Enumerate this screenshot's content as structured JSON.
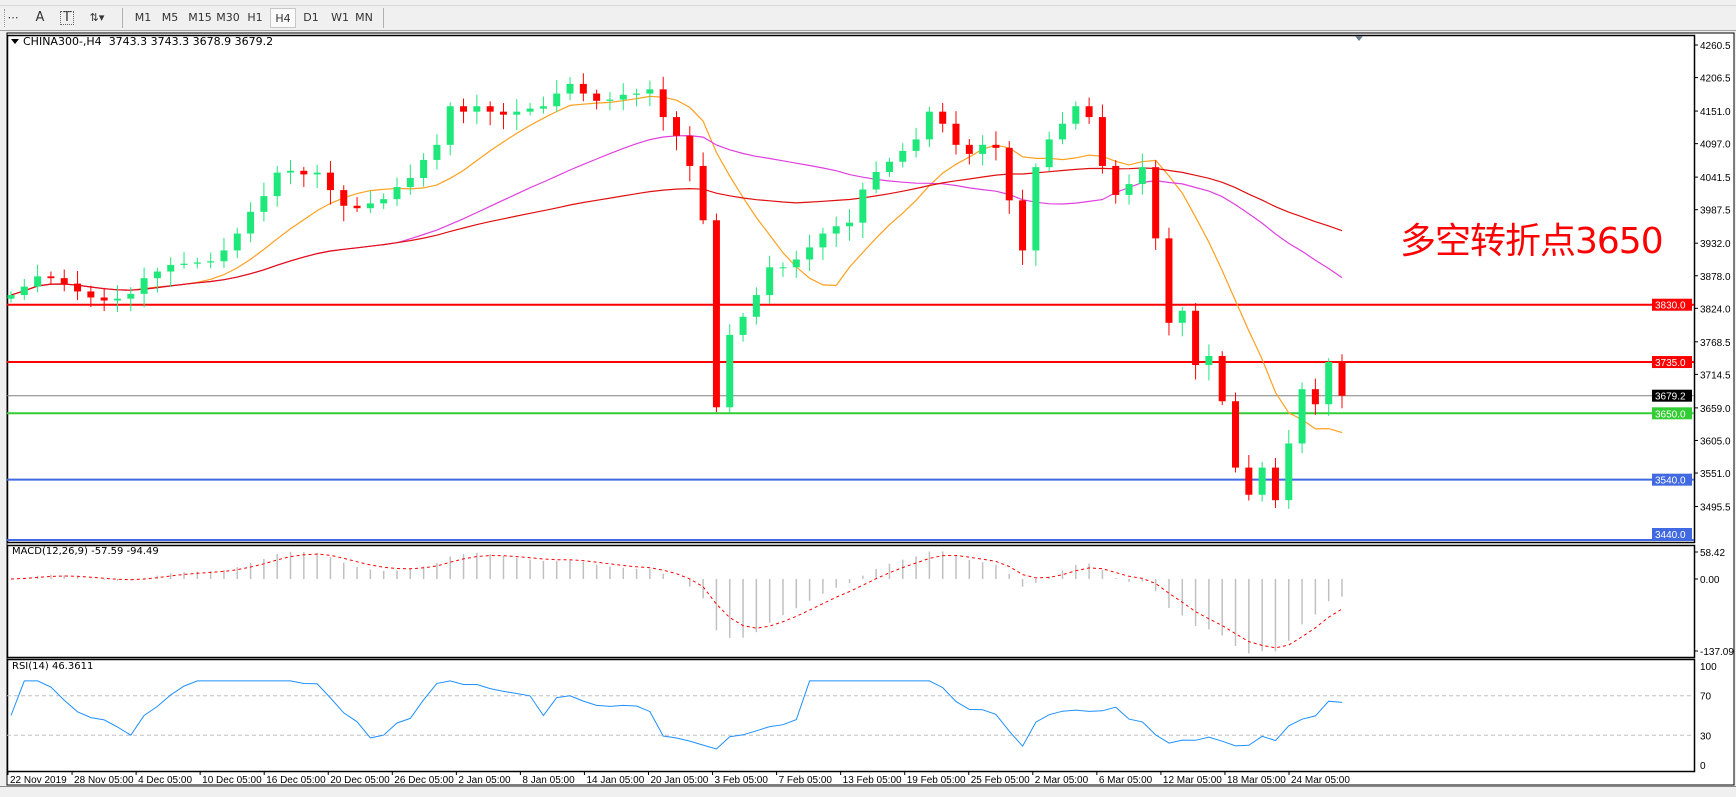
{
  "toolbar": {
    "tools": [
      {
        "name": "period-separators-icon",
        "glyph": "⋯"
      },
      {
        "name": "text-tool-icon",
        "glyph": "A"
      },
      {
        "name": "text-label-tool-icon",
        "glyph": "T"
      },
      {
        "name": "arrows-tool-icon",
        "glyph": "⇅▾"
      }
    ],
    "timeframes": [
      "M1",
      "M5",
      "M15",
      "M30",
      "H1",
      "H4",
      "D1",
      "W1",
      "MN"
    ],
    "active_timeframe": "H4"
  },
  "chart": {
    "symbol": "CHINA300-,H4",
    "ohlc": "3743.3 3743.3 3678.9 3679.2",
    "annotation": "多空转折点3650",
    "bull_color": "#1ee87a",
    "bear_color": "#ff0000"
  },
  "chart_data": {
    "type": "candlestick",
    "closes": [
      3846,
      3860,
      3877,
      3874,
      3865,
      3852,
      3842,
      3837,
      3840,
      3848,
      3874,
      3885,
      3896,
      3898,
      3900,
      3902,
      3920,
      3948,
      3984,
      4010,
      4049,
      4052,
      4046,
      4049,
      4020,
      3994,
      3990,
      3998,
      4005,
      4025,
      4040,
      4070,
      4095,
      4159,
      4150,
      4159,
      4150,
      4145,
      4150,
      4155,
      4159,
      4180,
      4196,
      4180,
      4168,
      4170,
      4178,
      4180,
      4187,
      4141,
      4110,
      4060,
      3970,
      3660,
      3780,
      3810,
      3846,
      3892,
      3892,
      3905,
      3925,
      3948,
      3960,
      3966,
      4021,
      4050,
      4067,
      4085,
      4104,
      4150,
      4130,
      4095,
      4080,
      4095,
      4090,
      4003,
      3920,
      4058,
      4104,
      4130,
      4159,
      4141,
      4060,
      4012,
      4030,
      4058,
      3940,
      3800,
      3820,
      3730,
      3745,
      3670,
      3560,
      3515,
      3560,
      3506,
      3600,
      3690,
      3665,
      3735,
      3679.2
    ],
    "ylim": [
      3440.0,
      4260.5
    ],
    "price_ticks": [
      "4260.5",
      "4206.5",
      "4151.0",
      "4097.0",
      "4041.5",
      "3987.5",
      "3932.0",
      "3878.0",
      "3824.0",
      "3768.5",
      "3714.5",
      "3659.0",
      "3605.0",
      "3551.0",
      "3495.5"
    ],
    "moving_averages": [
      {
        "color": "#ffa020"
      },
      {
        "color": "#e040e0"
      },
      {
        "color": "#e01010"
      }
    ],
    "levels": [
      {
        "price": "3830.0",
        "color": "#ff0000",
        "label_bg": "#ff0000"
      },
      {
        "price": "3735.0",
        "color": "#ff0000",
        "label_bg": "#ff0000"
      },
      {
        "price": "3679.2",
        "color": "#808080",
        "label_bg": "#000000"
      },
      {
        "price": "3650.0",
        "color": "#32cd32",
        "label_bg": "#32cd32"
      },
      {
        "price": "3540.0",
        "color": "#4169e1",
        "label_bg": "#4169e1"
      },
      {
        "price": "3440.0",
        "color": "#4169e1",
        "label_bg": "#4169e1"
      }
    ],
    "x_labels": [
      "22 Nov 2019",
      "28 Nov 05:00",
      "4 Dec 05:00",
      "10 Dec 05:00",
      "16 Dec 05:00",
      "20 Dec 05:00",
      "26 Dec 05:00",
      "2 Jan 05:00",
      "8 Jan 05:00",
      "14 Jan 05:00",
      "20 Jan 05:00",
      "3 Feb 05:00",
      "7 Feb 05:00",
      "13 Feb 05:00",
      "19 Feb 05:00",
      "25 Feb 05:00",
      "2 Mar 05:00",
      "6 Mar 05:00",
      "12 Mar 05:00",
      "18 Mar 05:00",
      "24 Mar 05:00"
    ],
    "macd": {
      "title": "MACD(12,26,9) -57.59 -94.49",
      "ticks": [
        "58.42",
        "0.00",
        "-137.09"
      ],
      "ylim": [
        -137.09,
        58.42
      ],
      "histogram_color": "#c0c0c0",
      "signal_color": "#ff0000"
    },
    "rsi": {
      "title": "RSI(14) 46.3611",
      "ticks": [
        "100",
        "70",
        "30",
        "0"
      ],
      "levels": [
        70,
        30
      ],
      "ylim": [
        0,
        100
      ],
      "color": "#1e90ff"
    }
  }
}
